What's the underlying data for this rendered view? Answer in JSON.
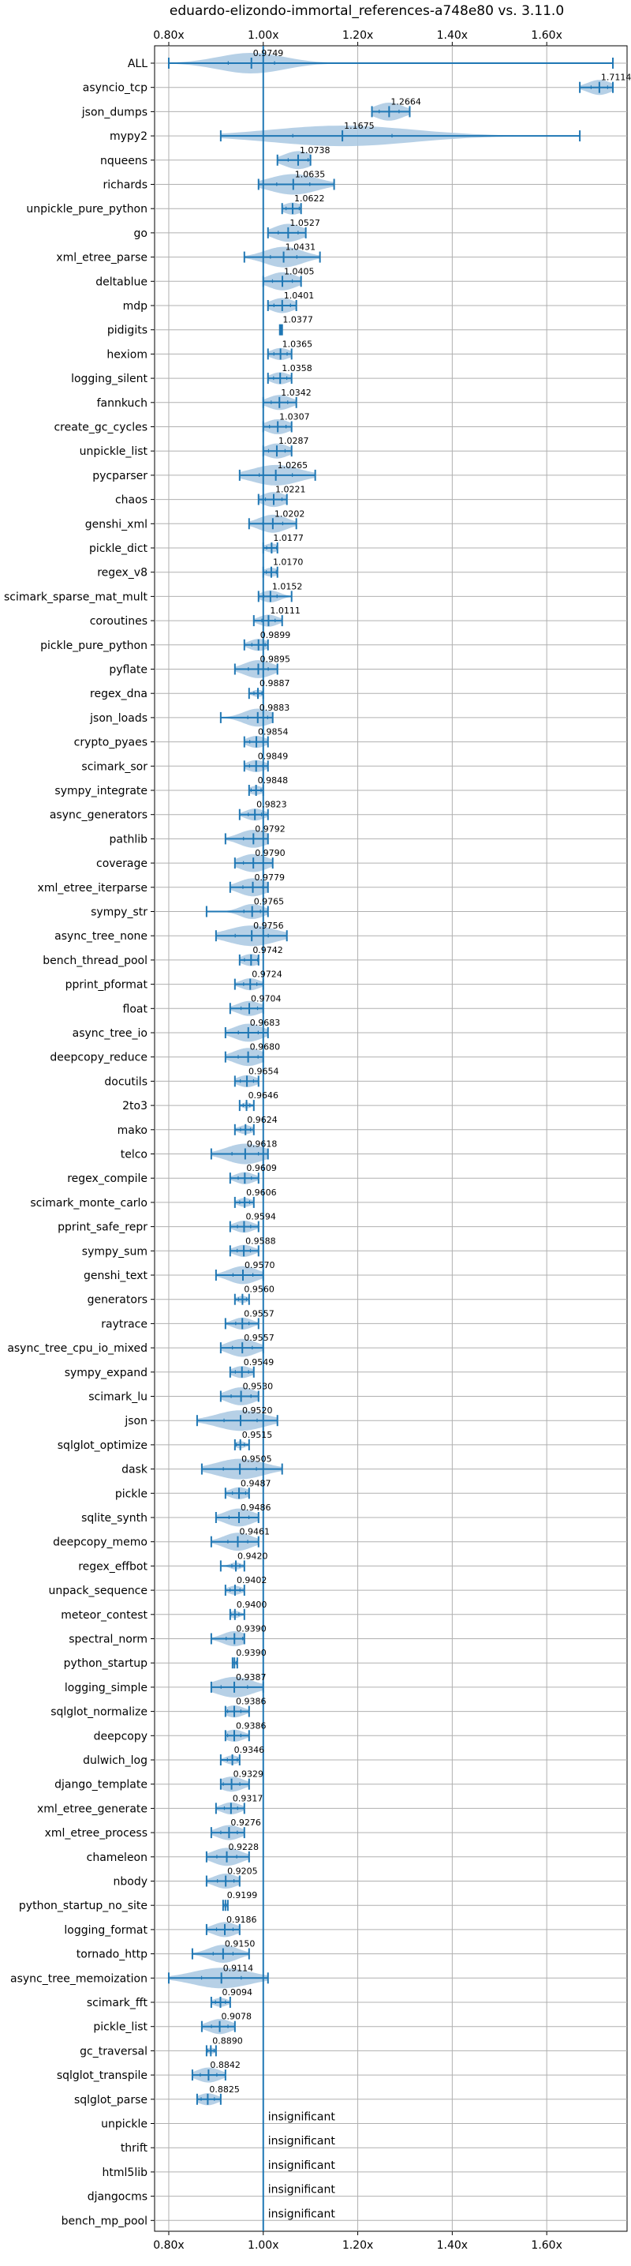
{
  "chart_data": {
    "type": "violin",
    "title": "eduardo-elizondo-immortal_references-a748e80 vs. 3.11.0",
    "xlim": [
      0.77,
      1.77
    ],
    "xticks": [
      0.8,
      1.0,
      1.2,
      1.4,
      1.6
    ],
    "xtick_labels": [
      "0.80x",
      "1.00x",
      "1.20x",
      "1.40x",
      "1.60x"
    ],
    "reference_line": 1.0,
    "grid": true,
    "colors": {
      "violin": "#a9c8e2",
      "line": "#1f77b4",
      "grid": "#b0b0b0"
    },
    "insignificant_label": "insignificant",
    "rows": [
      {
        "name": "ALL",
        "value": 0.9749,
        "label": "0.9749",
        "min": 0.8,
        "max": 1.74,
        "spread": 0.07
      },
      {
        "name": "asyncio_tcp",
        "value": 1.7114,
        "label": "1.7114",
        "min": 1.67,
        "max": 1.74,
        "spread": 0.025
      },
      {
        "name": "json_dumps",
        "value": 1.2664,
        "label": "1.2664",
        "min": 1.23,
        "max": 1.31,
        "spread": 0.03
      },
      {
        "name": "mypy2",
        "value": 1.1675,
        "label": "1.1675",
        "min": 0.91,
        "max": 1.67,
        "spread": 0.15
      },
      {
        "name": "nqueens",
        "value": 1.0738,
        "label": "1.0738",
        "min": 1.03,
        "max": 1.1,
        "spread": 0.03
      },
      {
        "name": "richards",
        "value": 1.0635,
        "label": "1.0635",
        "min": 0.99,
        "max": 1.15,
        "spread": 0.05
      },
      {
        "name": "unpickle_pure_python",
        "value": 1.0622,
        "label": "1.0622",
        "min": 1.04,
        "max": 1.08,
        "spread": 0.02
      },
      {
        "name": "go",
        "value": 1.0527,
        "label": "1.0527",
        "min": 1.01,
        "max": 1.09,
        "spread": 0.03
      },
      {
        "name": "xml_etree_parse",
        "value": 1.0431,
        "label": "1.0431",
        "min": 0.96,
        "max": 1.12,
        "spread": 0.04
      },
      {
        "name": "deltablue",
        "value": 1.0405,
        "label": "1.0405",
        "min": 1.0,
        "max": 1.08,
        "spread": 0.03
      },
      {
        "name": "mdp",
        "value": 1.0401,
        "label": "1.0401",
        "min": 1.01,
        "max": 1.07,
        "spread": 0.025
      },
      {
        "name": "pidigits",
        "value": 1.0377,
        "label": "1.0377",
        "min": 1.035,
        "max": 1.04,
        "spread": 0.005
      },
      {
        "name": "hexiom",
        "value": 1.0365,
        "label": "1.0365",
        "min": 1.01,
        "max": 1.06,
        "spread": 0.02
      },
      {
        "name": "logging_silent",
        "value": 1.0358,
        "label": "1.0358",
        "min": 1.01,
        "max": 1.06,
        "spread": 0.02
      },
      {
        "name": "fannkuch",
        "value": 1.0342,
        "label": "1.0342",
        "min": 1.0,
        "max": 1.07,
        "spread": 0.025
      },
      {
        "name": "create_gc_cycles",
        "value": 1.0307,
        "label": "1.0307",
        "min": 1.0,
        "max": 1.06,
        "spread": 0.025
      },
      {
        "name": "unpickle_list",
        "value": 1.0287,
        "label": "1.0287",
        "min": 1.0,
        "max": 1.06,
        "spread": 0.025
      },
      {
        "name": "pycparser",
        "value": 1.0265,
        "label": "1.0265",
        "min": 0.95,
        "max": 1.11,
        "spread": 0.05
      },
      {
        "name": "chaos",
        "value": 1.0221,
        "label": "1.0221",
        "min": 0.99,
        "max": 1.05,
        "spread": 0.025
      },
      {
        "name": "genshi_xml",
        "value": 1.0202,
        "label": "1.0202",
        "min": 0.97,
        "max": 1.07,
        "spread": 0.03
      },
      {
        "name": "pickle_dict",
        "value": 1.0177,
        "label": "1.0177",
        "min": 1.0,
        "max": 1.03,
        "spread": 0.015
      },
      {
        "name": "regex_v8",
        "value": 1.017,
        "label": "1.0170",
        "min": 1.0,
        "max": 1.03,
        "spread": 0.015
      },
      {
        "name": "scimark_sparse_mat_mult",
        "value": 1.0152,
        "label": "1.0152",
        "min": 0.99,
        "max": 1.06,
        "spread": 0.02
      },
      {
        "name": "coroutines",
        "value": 1.0111,
        "label": "1.0111",
        "min": 0.98,
        "max": 1.04,
        "spread": 0.02
      },
      {
        "name": "pickle_pure_python",
        "value": 0.9899,
        "label": "0.9899",
        "min": 0.96,
        "max": 1.01,
        "spread": 0.02
      },
      {
        "name": "pyflate",
        "value": 0.9895,
        "label": "0.9895",
        "min": 0.94,
        "max": 1.03,
        "spread": 0.03
      },
      {
        "name": "regex_dna",
        "value": 0.9887,
        "label": "0.9887",
        "min": 0.97,
        "max": 1.0,
        "spread": 0.012
      },
      {
        "name": "json_loads",
        "value": 0.9883,
        "label": "0.9883",
        "min": 0.91,
        "max": 1.02,
        "spread": 0.03
      },
      {
        "name": "crypto_pyaes",
        "value": 0.9854,
        "label": "0.9854",
        "min": 0.96,
        "max": 1.01,
        "spread": 0.02
      },
      {
        "name": "scimark_sor",
        "value": 0.9849,
        "label": "0.9849",
        "min": 0.96,
        "max": 1.01,
        "spread": 0.02
      },
      {
        "name": "sympy_integrate",
        "value": 0.9848,
        "label": "0.9848",
        "min": 0.97,
        "max": 1.0,
        "spread": 0.015
      },
      {
        "name": "async_generators",
        "value": 0.9823,
        "label": "0.9823",
        "min": 0.95,
        "max": 1.01,
        "spread": 0.02
      },
      {
        "name": "pathlib",
        "value": 0.9792,
        "label": "0.9792",
        "min": 0.92,
        "max": 1.01,
        "spread": 0.03
      },
      {
        "name": "coverage",
        "value": 0.979,
        "label": "0.9790",
        "min": 0.94,
        "max": 1.02,
        "spread": 0.03
      },
      {
        "name": "xml_etree_iterparse",
        "value": 0.9779,
        "label": "0.9779",
        "min": 0.93,
        "max": 1.01,
        "spread": 0.03
      },
      {
        "name": "sympy_str",
        "value": 0.9765,
        "label": "0.9765",
        "min": 0.88,
        "max": 1.01,
        "spread": 0.025
      },
      {
        "name": "async_tree_none",
        "value": 0.9756,
        "label": "0.9756",
        "min": 0.9,
        "max": 1.05,
        "spread": 0.05
      },
      {
        "name": "bench_thread_pool",
        "value": 0.9742,
        "label": "0.9742",
        "min": 0.95,
        "max": 0.99,
        "spread": 0.02
      },
      {
        "name": "pprint_pformat",
        "value": 0.9724,
        "label": "0.9724",
        "min": 0.94,
        "max": 1.0,
        "spread": 0.02
      },
      {
        "name": "float",
        "value": 0.9704,
        "label": "0.9704",
        "min": 0.93,
        "max": 1.0,
        "spread": 0.025
      },
      {
        "name": "async_tree_io",
        "value": 0.9683,
        "label": "0.9683",
        "min": 0.92,
        "max": 1.01,
        "spread": 0.03
      },
      {
        "name": "deepcopy_reduce",
        "value": 0.968,
        "label": "0.9680",
        "min": 0.92,
        "max": 1.0,
        "spread": 0.03
      },
      {
        "name": "docutils",
        "value": 0.9654,
        "label": "0.9654",
        "min": 0.94,
        "max": 0.99,
        "spread": 0.02
      },
      {
        "name": "2to3",
        "value": 0.9646,
        "label": "0.9646",
        "min": 0.95,
        "max": 0.98,
        "spread": 0.01
      },
      {
        "name": "mako",
        "value": 0.9624,
        "label": "0.9624",
        "min": 0.94,
        "max": 0.98,
        "spread": 0.015
      },
      {
        "name": "telco",
        "value": 0.9618,
        "label": "0.9618",
        "min": 0.89,
        "max": 1.01,
        "spread": 0.04
      },
      {
        "name": "regex_compile",
        "value": 0.9609,
        "label": "0.9609",
        "min": 0.93,
        "max": 0.99,
        "spread": 0.02
      },
      {
        "name": "scimark_monte_carlo",
        "value": 0.9606,
        "label": "0.9606",
        "min": 0.94,
        "max": 0.98,
        "spread": 0.015
      },
      {
        "name": "pprint_safe_repr",
        "value": 0.9594,
        "label": "0.9594",
        "min": 0.93,
        "max": 0.99,
        "spread": 0.02
      },
      {
        "name": "sympy_sum",
        "value": 0.9588,
        "label": "0.9588",
        "min": 0.93,
        "max": 0.99,
        "spread": 0.02
      },
      {
        "name": "genshi_text",
        "value": 0.957,
        "label": "0.9570",
        "min": 0.9,
        "max": 1.0,
        "spread": 0.03
      },
      {
        "name": "generators",
        "value": 0.956,
        "label": "0.9560",
        "min": 0.94,
        "max": 0.97,
        "spread": 0.012
      },
      {
        "name": "raytrace",
        "value": 0.9557,
        "label": "0.9557",
        "min": 0.92,
        "max": 0.99,
        "spread": 0.02
      },
      {
        "name": "async_tree_cpu_io_mixed",
        "value": 0.9557,
        "label": "0.9557",
        "min": 0.91,
        "max": 1.0,
        "spread": 0.03
      },
      {
        "name": "sympy_expand",
        "value": 0.9549,
        "label": "0.9549",
        "min": 0.93,
        "max": 0.98,
        "spread": 0.02
      },
      {
        "name": "scimark_lu",
        "value": 0.953,
        "label": "0.9530",
        "min": 0.91,
        "max": 0.99,
        "spread": 0.03
      },
      {
        "name": "json",
        "value": 0.952,
        "label": "0.9520",
        "min": 0.86,
        "max": 1.03,
        "spread": 0.05
      },
      {
        "name": "sqlglot_optimize",
        "value": 0.9515,
        "label": "0.9515",
        "min": 0.94,
        "max": 0.97,
        "spread": 0.012
      },
      {
        "name": "dask",
        "value": 0.9505,
        "label": "0.9505",
        "min": 0.87,
        "max": 1.04,
        "spread": 0.05
      },
      {
        "name": "pickle",
        "value": 0.9487,
        "label": "0.9487",
        "min": 0.92,
        "max": 0.97,
        "spread": 0.02
      },
      {
        "name": "sqlite_synth",
        "value": 0.9486,
        "label": "0.9486",
        "min": 0.9,
        "max": 0.99,
        "spread": 0.03
      },
      {
        "name": "deepcopy_memo",
        "value": 0.9461,
        "label": "0.9461",
        "min": 0.89,
        "max": 0.99,
        "spread": 0.03
      },
      {
        "name": "regex_effbot",
        "value": 0.942,
        "label": "0.9420",
        "min": 0.91,
        "max": 0.96,
        "spread": 0.012
      },
      {
        "name": "unpack_sequence",
        "value": 0.9402,
        "label": "0.9402",
        "min": 0.92,
        "max": 0.96,
        "spread": 0.015
      },
      {
        "name": "meteor_contest",
        "value": 0.94,
        "label": "0.9400",
        "min": 0.93,
        "max": 0.96,
        "spread": 0.012
      },
      {
        "name": "spectral_norm",
        "value": 0.939,
        "label": "0.9390",
        "min": 0.89,
        "max": 0.96,
        "spread": 0.025
      },
      {
        "name": "python_startup",
        "value": 0.939,
        "label": "0.9390",
        "min": 0.935,
        "max": 0.945,
        "spread": 0.006
      },
      {
        "name": "logging_simple",
        "value": 0.9387,
        "label": "0.9387",
        "min": 0.89,
        "max": 1.0,
        "spread": 0.04
      },
      {
        "name": "sqlglot_normalize",
        "value": 0.9386,
        "label": "0.9386",
        "min": 0.92,
        "max": 0.97,
        "spread": 0.02
      },
      {
        "name": "deepcopy",
        "value": 0.9386,
        "label": "0.9386",
        "min": 0.92,
        "max": 0.97,
        "spread": 0.02
      },
      {
        "name": "dulwich_log",
        "value": 0.9346,
        "label": "0.9346",
        "min": 0.91,
        "max": 0.95,
        "spread": 0.015
      },
      {
        "name": "django_template",
        "value": 0.9329,
        "label": "0.9329",
        "min": 0.91,
        "max": 0.97,
        "spread": 0.025
      },
      {
        "name": "xml_etree_generate",
        "value": 0.9317,
        "label": "0.9317",
        "min": 0.9,
        "max": 0.96,
        "spread": 0.02
      },
      {
        "name": "xml_etree_process",
        "value": 0.9276,
        "label": "0.9276",
        "min": 0.89,
        "max": 0.96,
        "spread": 0.025
      },
      {
        "name": "chameleon",
        "value": 0.9228,
        "label": "0.9228",
        "min": 0.88,
        "max": 0.97,
        "spread": 0.03
      },
      {
        "name": "nbody",
        "value": 0.9205,
        "label": "0.9205",
        "min": 0.88,
        "max": 0.95,
        "spread": 0.025
      },
      {
        "name": "python_startup_no_site",
        "value": 0.9199,
        "label": "0.9199",
        "min": 0.915,
        "max": 0.925,
        "spread": 0.006
      },
      {
        "name": "logging_format",
        "value": 0.9186,
        "label": "0.9186",
        "min": 0.88,
        "max": 0.95,
        "spread": 0.025
      },
      {
        "name": "tornado_http",
        "value": 0.915,
        "label": "0.9150",
        "min": 0.85,
        "max": 0.97,
        "spread": 0.03
      },
      {
        "name": "async_tree_memoization",
        "value": 0.9114,
        "label": "0.9114",
        "min": 0.8,
        "max": 1.01,
        "spread": 0.06
      },
      {
        "name": "scimark_fft",
        "value": 0.9094,
        "label": "0.9094",
        "min": 0.89,
        "max": 0.93,
        "spread": 0.015
      },
      {
        "name": "pickle_list",
        "value": 0.9078,
        "label": "0.9078",
        "min": 0.87,
        "max": 0.94,
        "spread": 0.025
      },
      {
        "name": "gc_traversal",
        "value": 0.889,
        "label": "0.8890",
        "min": 0.88,
        "max": 0.9,
        "spread": 0.01
      },
      {
        "name": "sqlglot_transpile",
        "value": 0.8842,
        "label": "0.8842",
        "min": 0.85,
        "max": 0.92,
        "spread": 0.025
      },
      {
        "name": "sqlglot_parse",
        "value": 0.8825,
        "label": "0.8825",
        "min": 0.86,
        "max": 0.91,
        "spread": 0.02
      },
      {
        "name": "unpickle",
        "insignificant": true
      },
      {
        "name": "thrift",
        "insignificant": true
      },
      {
        "name": "html5lib",
        "insignificant": true
      },
      {
        "name": "djangocms",
        "insignificant": true
      },
      {
        "name": "bench_mp_pool",
        "insignificant": true
      }
    ]
  }
}
